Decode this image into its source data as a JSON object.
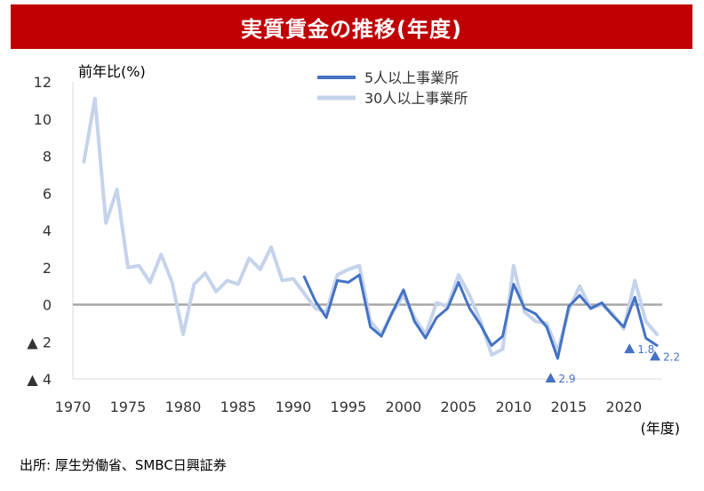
{
  "title": "実質賃金の推移(年度)",
  "source": "出所: 厚生労働省、SMBC日興証券",
  "chart_data": {
    "type": "line",
    "ylabel": "前年比(%)",
    "xlabel": "(年度)",
    "ylim": [
      -4,
      12
    ],
    "yticks": [
      {
        "value": 12,
        "label": "12"
      },
      {
        "value": 10,
        "label": "10"
      },
      {
        "value": 8,
        "label": "8"
      },
      {
        "value": 6,
        "label": "6"
      },
      {
        "value": 4,
        "label": "4"
      },
      {
        "value": 2,
        "label": "2"
      },
      {
        "value": 0,
        "label": "0"
      },
      {
        "value": -2,
        "label": "▲ 2"
      },
      {
        "value": -4,
        "label": "▲ 4"
      }
    ],
    "xlim": [
      1970,
      2023
    ],
    "xticks": [
      1970,
      1975,
      1980,
      1985,
      1990,
      1995,
      2000,
      2005,
      2010,
      2015,
      2020
    ],
    "legend_position": "top-center",
    "series": [
      {
        "name": "5人以上事業所",
        "color": "#4472c4",
        "width": 3,
        "x": [
          1991,
          1992,
          1993,
          1994,
          1995,
          1996,
          1997,
          1998,
          1999,
          2000,
          2001,
          2002,
          2003,
          2004,
          2005,
          2006,
          2007,
          2008,
          2009,
          2010,
          2011,
          2012,
          2013,
          2014,
          2015,
          2016,
          2017,
          2018,
          2019,
          2020,
          2021,
          2022,
          2023
        ],
        "y": [
          1.5,
          0.2,
          -0.7,
          1.3,
          1.2,
          1.6,
          -1.2,
          -1.7,
          -0.4,
          0.8,
          -0.9,
          -1.8,
          -0.7,
          -0.2,
          1.2,
          -0.2,
          -1.1,
          -2.2,
          -1.7,
          1.1,
          -0.2,
          -0.5,
          -1.2,
          -2.9,
          -0.1,
          0.5,
          -0.2,
          0.1,
          -0.6,
          -1.2,
          0.4,
          -1.8,
          -2.2
        ]
      },
      {
        "name": "30人以上事業所",
        "color": "#c5d3eb",
        "width": 4,
        "x": [
          1971,
          1972,
          1973,
          1974,
          1975,
          1976,
          1977,
          1978,
          1979,
          1980,
          1981,
          1982,
          1983,
          1984,
          1985,
          1986,
          1987,
          1988,
          1989,
          1990,
          1991,
          1992,
          1993,
          1994,
          1995,
          1996,
          1997,
          1998,
          1999,
          2000,
          2001,
          2002,
          2003,
          2004,
          2005,
          2006,
          2007,
          2008,
          2009,
          2010,
          2011,
          2012,
          2013,
          2014,
          2015,
          2016,
          2017,
          2018,
          2019,
          2020,
          2021,
          2022,
          2023
        ],
        "y": [
          7.7,
          11.1,
          4.4,
          6.2,
          2.0,
          2.1,
          1.2,
          2.7,
          1.2,
          -1.6,
          1.1,
          1.7,
          0.7,
          1.3,
          1.1,
          2.5,
          1.9,
          3.1,
          1.3,
          1.4,
          0.6,
          -0.2,
          -0.4,
          1.6,
          1.9,
          2.1,
          -0.9,
          -1.6,
          -0.4,
          0.5,
          -0.7,
          -1.6,
          0.1,
          -0.1,
          1.6,
          0.5,
          -0.9,
          -2.7,
          -2.4,
          2.1,
          -0.4,
          -0.9,
          -1.0,
          -2.5,
          -0.3,
          1.0,
          -0.2,
          0.0,
          -0.5,
          -1.3,
          1.3,
          -0.9,
          -1.6
        ]
      }
    ],
    "annotations": [
      {
        "x": 2014,
        "y": -2.9,
        "label": "2.9"
      },
      {
        "x": 2021,
        "y": -1.8,
        "label": "1.8"
      },
      {
        "x": 2023,
        "y": -2.2,
        "label": "2.2"
      }
    ]
  }
}
